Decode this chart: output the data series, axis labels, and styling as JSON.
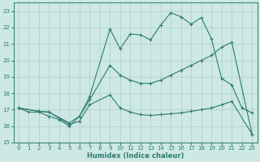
{
  "xlabel": "Humidex (Indice chaleur)",
  "xlim": [
    -0.5,
    23.5
  ],
  "ylim": [
    15,
    23.5
  ],
  "xticks": [
    0,
    1,
    2,
    3,
    4,
    5,
    6,
    7,
    8,
    9,
    10,
    11,
    12,
    13,
    14,
    15,
    16,
    17,
    18,
    19,
    20,
    21,
    22,
    23
  ],
  "yticks": [
    15,
    16,
    17,
    18,
    19,
    20,
    21,
    22,
    23
  ],
  "bg_color": "#cde8e5",
  "line_color": "#2d7d6e",
  "grid_color": "#aecfcc",
  "lines": [
    {
      "x": [
        0,
        1,
        2,
        3,
        4,
        5,
        6,
        7,
        9,
        10,
        11,
        12,
        13,
        14,
        15,
        16,
        17,
        18,
        19,
        20,
        21,
        22,
        23
      ],
      "y": [
        17.1,
        16.85,
        16.85,
        16.6,
        16.4,
        16.0,
        16.6,
        17.8,
        21.9,
        20.7,
        21.6,
        21.55,
        21.25,
        22.15,
        22.9,
        22.65,
        22.2,
        22.6,
        21.3,
        18.9,
        18.5,
        17.1,
        16.8
      ]
    },
    {
      "x": [
        0,
        2,
        3,
        5,
        6,
        7,
        9,
        10,
        11,
        12,
        13,
        14,
        15,
        16,
        17,
        18,
        19,
        20,
        21,
        23
      ],
      "y": [
        17.1,
        16.9,
        16.85,
        16.2,
        16.6,
        17.6,
        19.7,
        19.1,
        18.8,
        18.6,
        18.6,
        18.8,
        19.1,
        19.4,
        19.7,
        20.0,
        20.3,
        20.8,
        21.1,
        15.5
      ]
    },
    {
      "x": [
        0,
        2,
        3,
        5,
        6,
        7,
        9,
        10,
        11,
        12,
        13,
        14,
        15,
        16,
        17,
        18,
        19,
        20,
        21,
        23
      ],
      "y": [
        17.1,
        16.9,
        16.85,
        16.1,
        16.3,
        17.3,
        17.9,
        17.1,
        16.85,
        16.7,
        16.65,
        16.7,
        16.75,
        16.8,
        16.9,
        17.0,
        17.1,
        17.3,
        17.5,
        15.5
      ]
    }
  ]
}
